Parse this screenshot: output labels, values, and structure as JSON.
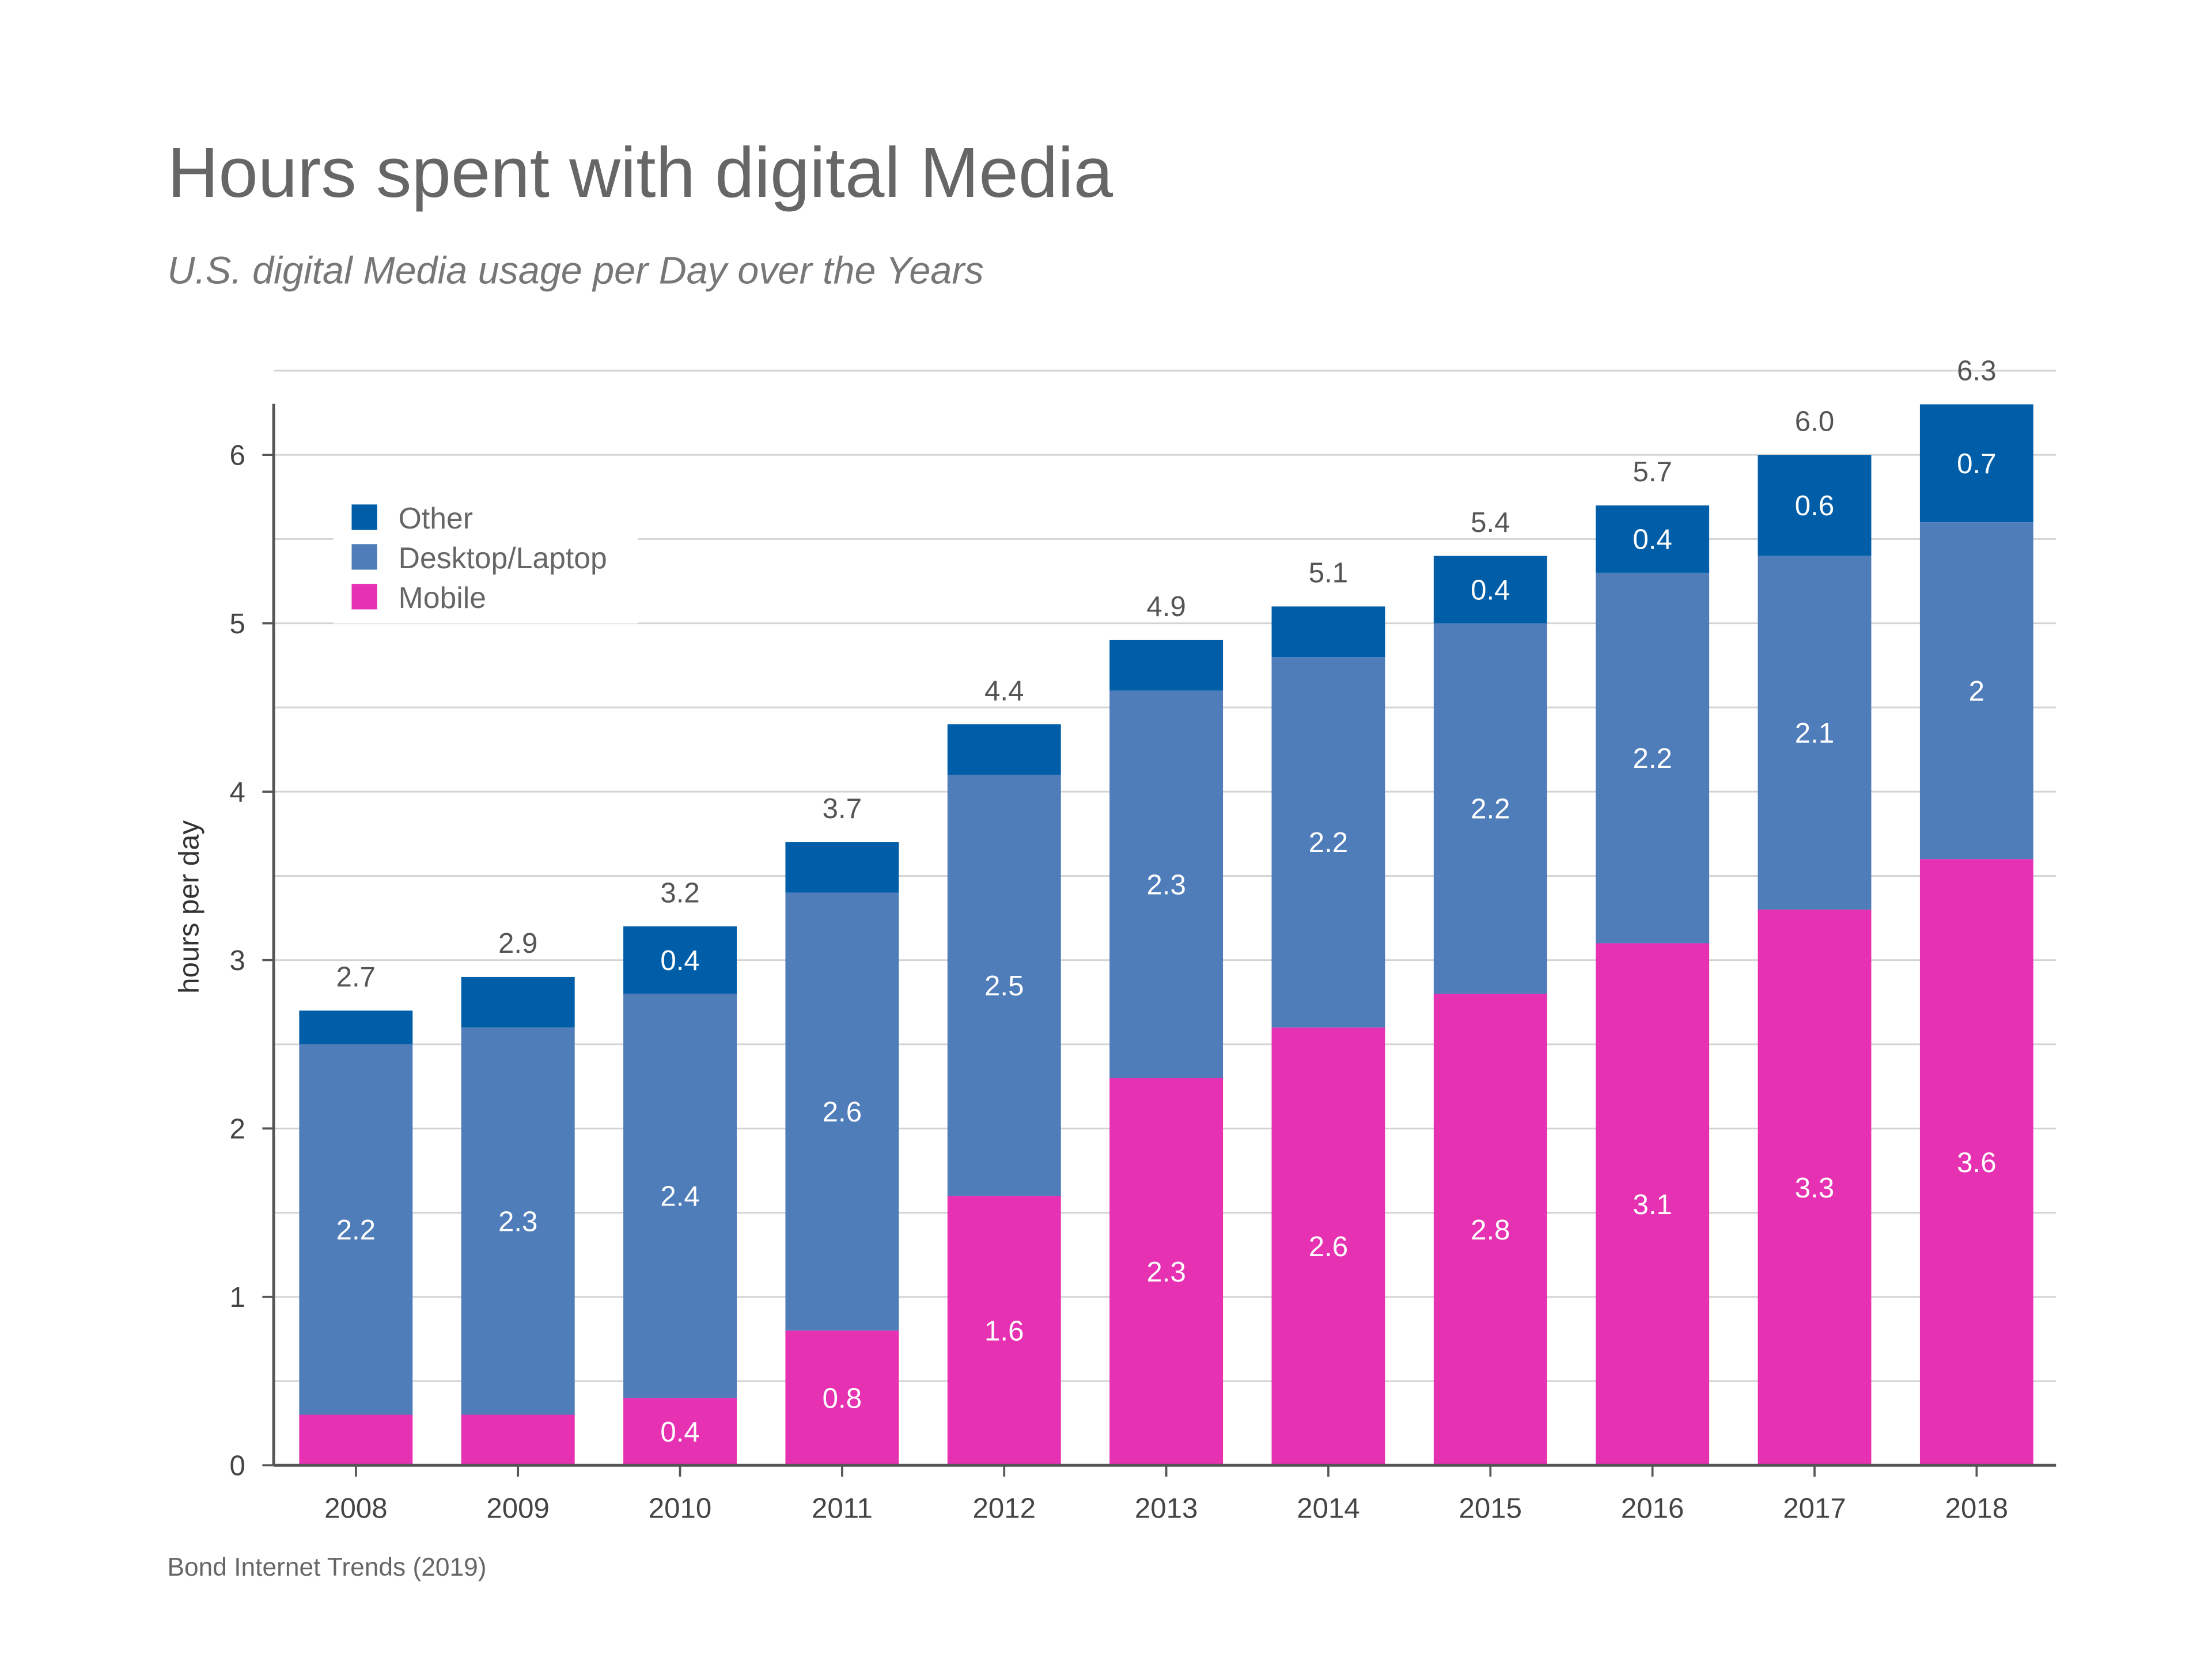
{
  "chart_data": {
    "type": "bar",
    "stacked": true,
    "title": "Hours spent with digital Media",
    "subtitle": "U.S. digital Media usage per Day over the Years",
    "xlabel": "",
    "ylabel": "hours per day",
    "source": "Bond Internet Trends (2019)",
    "ylim": [
      0,
      6.3
    ],
    "yticks": [
      "0",
      "1",
      "2",
      "3",
      "4",
      "5",
      "6"
    ],
    "grid": true,
    "legend_placement": "top-left",
    "categories": [
      "2008",
      "2009",
      "2010",
      "2011",
      "2012",
      "2013",
      "2014",
      "2015",
      "2016",
      "2017",
      "2018"
    ],
    "series": [
      {
        "name": "Mobile",
        "color": "#e631b3",
        "values": [
          0.3,
          0.3,
          0.4,
          0.8,
          1.6,
          2.3,
          2.6,
          2.8,
          3.1,
          3.3,
          3.6
        ]
      },
      {
        "name": "Desktop/Laptop",
        "color": "#4e7dba",
        "values": [
          2.2,
          2.3,
          2.4,
          2.6,
          2.5,
          2.3,
          2.2,
          2.2,
          2.2,
          2.1,
          2.0
        ]
      },
      {
        "name": "Other",
        "color": "#005ea8",
        "values": [
          0.2,
          0.3,
          0.4,
          0.3,
          0.3,
          0.3,
          0.3,
          0.4,
          0.4,
          0.6,
          0.7
        ]
      }
    ],
    "totals": [
      "2.7",
      "2.9",
      "3.2",
      "3.7",
      "4.4",
      "4.9",
      "5.1",
      "5.4",
      "5.7",
      "6.0",
      "6.3"
    ],
    "legend_order": [
      "Other",
      "Desktop/Laptop",
      "Mobile"
    ]
  }
}
